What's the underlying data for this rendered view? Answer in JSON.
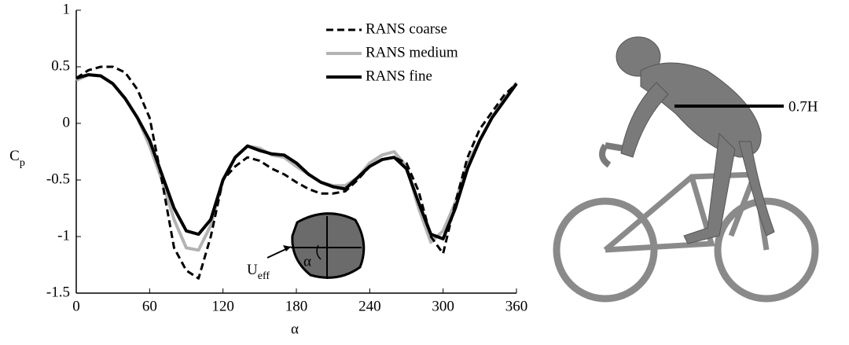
{
  "chart_data": {
    "type": "line",
    "xlabel": "α",
    "ylabel": "C",
    "ylabel_sub": "p",
    "x": [
      0,
      10,
      20,
      30,
      40,
      50,
      60,
      70,
      80,
      90,
      100,
      110,
      120,
      130,
      140,
      150,
      160,
      170,
      180,
      190,
      200,
      210,
      220,
      230,
      240,
      250,
      260,
      270,
      280,
      290,
      300,
      310,
      320,
      330,
      340,
      350,
      360
    ],
    "series": [
      {
        "name": "RANS coarse",
        "color": "#000000",
        "dash": true,
        "values": [
          0.4,
          0.47,
          0.5,
          0.5,
          0.45,
          0.3,
          0.05,
          -0.5,
          -1.1,
          -1.3,
          -1.37,
          -1.0,
          -0.5,
          -0.38,
          -0.3,
          -0.33,
          -0.4,
          -0.45,
          -0.52,
          -0.58,
          -0.62,
          -0.62,
          -0.6,
          -0.5,
          -0.38,
          -0.32,
          -0.3,
          -0.35,
          -0.6,
          -1.0,
          -1.15,
          -0.7,
          -0.3,
          -0.05,
          0.1,
          0.25,
          0.35
        ]
      },
      {
        "name": "RANS medium",
        "color": "#b3b3b3",
        "dash": false,
        "values": [
          0.38,
          0.43,
          0.42,
          0.35,
          0.22,
          0.05,
          -0.2,
          -0.5,
          -0.85,
          -1.1,
          -1.12,
          -0.9,
          -0.5,
          -0.3,
          -0.2,
          -0.22,
          -0.28,
          -0.3,
          -0.38,
          -0.45,
          -0.52,
          -0.55,
          -0.55,
          -0.48,
          -0.35,
          -0.28,
          -0.25,
          -0.38,
          -0.75,
          -1.05,
          -0.95,
          -0.7,
          -0.35,
          -0.15,
          0.05,
          0.22,
          0.36
        ]
      },
      {
        "name": "RANS fine",
        "color": "#000000",
        "dash": false,
        "values": [
          0.4,
          0.43,
          0.42,
          0.35,
          0.22,
          0.05,
          -0.15,
          -0.45,
          -0.75,
          -0.95,
          -0.98,
          -0.85,
          -0.5,
          -0.3,
          -0.2,
          -0.24,
          -0.27,
          -0.28,
          -0.35,
          -0.45,
          -0.52,
          -0.56,
          -0.58,
          -0.48,
          -0.38,
          -0.32,
          -0.3,
          -0.4,
          -0.7,
          -0.98,
          -1.02,
          -0.75,
          -0.4,
          -0.15,
          0.05,
          0.2,
          0.35
        ]
      }
    ],
    "xlim": [
      0,
      360
    ],
    "xticks": [
      0,
      60,
      120,
      180,
      240,
      300,
      360
    ],
    "ylim": [
      -1.5,
      1
    ],
    "yticks": [
      -1.5,
      -1,
      -0.5,
      0,
      0.5,
      1
    ],
    "legend": "upper right",
    "annotations": {
      "flow": "U",
      "flow_sub": "eff",
      "angle": "α",
      "height": "0.7H"
    }
  }
}
